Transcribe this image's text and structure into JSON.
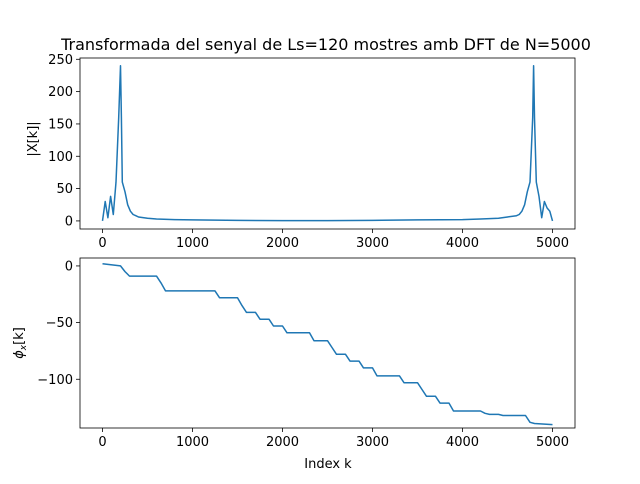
{
  "chart_data": [
    {
      "type": "line",
      "title": "Transformada del senyal de Ls=120 mostres amb DFT de N=5000",
      "xlabel": "",
      "ylabel": "|X[k]|",
      "xlim": [
        -250,
        5250
      ],
      "ylim": [
        -12.5,
        252
      ],
      "xticks": [
        0,
        1000,
        2000,
        3000,
        4000,
        5000
      ],
      "xtick_labels": [
        "0",
        "1000",
        "2000",
        "3000",
        "4000",
        "5000"
      ],
      "yticks": [
        0,
        50,
        100,
        150,
        200,
        250
      ],
      "ytick_labels": [
        "0",
        "50",
        "100",
        "150",
        "200",
        "250"
      ],
      "grid": false,
      "color": "#1f77b4",
      "series": [
        {
          "x": [
            0,
            30,
            60,
            90,
            120,
            150,
            180,
            200,
            210,
            220,
            250,
            280,
            310,
            340,
            370,
            400,
            500,
            600,
            800,
            1000,
            1500,
            2000,
            2500,
            3000,
            3500,
            4000,
            4200,
            4400,
            4500,
            4600,
            4630,
            4660,
            4690,
            4720,
            4750,
            4780,
            4790,
            4800,
            4820,
            4850,
            4880,
            4910,
            4940,
            4970,
            5000
          ],
          "y": [
            0,
            30,
            5,
            38,
            10,
            60,
            160,
            240,
            160,
            60,
            45,
            25,
            15,
            10,
            8,
            6,
            4,
            3,
            2,
            1.5,
            0.8,
            0.5,
            0.5,
            0.8,
            1.5,
            2,
            3,
            4,
            6,
            8,
            10,
            15,
            25,
            45,
            60,
            160,
            240,
            160,
            60,
            38,
            5,
            30,
            20,
            15,
            0
          ]
        }
      ]
    },
    {
      "type": "line",
      "title": "",
      "xlabel": "Index k",
      "ylabel": "ϕx[k]",
      "xlim": [
        -250,
        5250
      ],
      "ylim": [
        -143,
        7
      ],
      "xticks": [
        0,
        1000,
        2000,
        3000,
        4000,
        5000
      ],
      "xtick_labels": [
        "0",
        "1000",
        "2000",
        "3000",
        "4000",
        "5000"
      ],
      "yticks": [
        0,
        -50,
        -100
      ],
      "ytick_labels": [
        "0",
        "−50",
        "−100"
      ],
      "grid": false,
      "color": "#1f77b4",
      "series": [
        {
          "x": [
            0,
            200,
            250,
            300,
            600,
            650,
            700,
            1250,
            1300,
            1500,
            1550,
            1600,
            1700,
            1750,
            1850,
            1900,
            2000,
            2050,
            2300,
            2350,
            2500,
            2550,
            2600,
            2700,
            2750,
            2850,
            2900,
            3000,
            3050,
            3300,
            3350,
            3500,
            3550,
            3600,
            3700,
            3750,
            3850,
            3900,
            4200,
            4250,
            4300,
            4400,
            4450,
            4700,
            4750,
            4800,
            5000
          ],
          "y": [
            2,
            0,
            -5,
            -9,
            -9,
            -15,
            -22,
            -22,
            -28,
            -28,
            -35,
            -41,
            -41,
            -47,
            -47,
            -53,
            -53,
            -59,
            -59,
            -66,
            -66,
            -72,
            -78,
            -78,
            -84,
            -84,
            -90,
            -90,
            -97,
            -97,
            -103,
            -103,
            -109,
            -115,
            -115,
            -121,
            -121,
            -128,
            -128,
            -130,
            -131,
            -131,
            -132,
            -132,
            -138,
            -139,
            -140
          ]
        }
      ]
    }
  ]
}
